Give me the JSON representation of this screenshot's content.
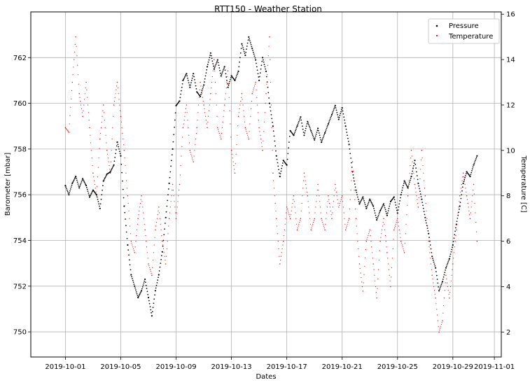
{
  "chart_data": {
    "type": "scatter",
    "title": "RTT150 - Weather Station",
    "xlabel": "Dates",
    "ylabel": "Barometer [mbar]",
    "y2label": "Temperature [C]",
    "xlim": [
      "2019-09-28T12:00",
      "2019-11-01T12:00"
    ],
    "ylim": [
      748.9,
      764.0
    ],
    "y2lim": [
      0.9,
      16.1
    ],
    "x_ticks": [
      "2019-10-01",
      "2019-10-05",
      "2019-10-09",
      "2019-10-13",
      "2019-10-17",
      "2019-10-21",
      "2019-10-25",
      "2019-10-29",
      "2019-11-01"
    ],
    "y_ticks": [
      750,
      752,
      754,
      756,
      758,
      760,
      762
    ],
    "y2_ticks": [
      2,
      4,
      6,
      8,
      10,
      12,
      14,
      16
    ],
    "grid": true,
    "legend": "top-right",
    "series": [
      {
        "name": "Pressure",
        "axis": "left",
        "color": "#000000",
        "marker": "dot",
        "points": [
          [
            "2019-10-01T00:00",
            756.4
          ],
          [
            "2019-10-01T06:00",
            756.0
          ],
          [
            "2019-10-01T12:00",
            756.5
          ],
          [
            "2019-10-01T18:00",
            756.8
          ],
          [
            "2019-10-02T00:00",
            756.3
          ],
          [
            "2019-10-02T06:00",
            756.7
          ],
          [
            "2019-10-02T12:00",
            756.4
          ],
          [
            "2019-10-02T18:00",
            755.9
          ],
          [
            "2019-10-03T00:00",
            756.2
          ],
          [
            "2019-10-03T06:00",
            756.0
          ],
          [
            "2019-10-03T12:00",
            755.4
          ],
          [
            "2019-10-03T18:00",
            756.6
          ],
          [
            "2019-10-04T00:00",
            756.9
          ],
          [
            "2019-10-04T06:00",
            757.0
          ],
          [
            "2019-10-04T12:00",
            757.3
          ],
          [
            "2019-10-04T18:00",
            758.3
          ],
          [
            "2019-10-05T00:00",
            757.7
          ],
          [
            "2019-10-05T06:00",
            755.5
          ],
          [
            "2019-10-05T12:00",
            753.8
          ],
          [
            "2019-10-05T18:00",
            752.5
          ],
          [
            "2019-10-06T00:00",
            752.0
          ],
          [
            "2019-10-06T06:00",
            751.5
          ],
          [
            "2019-10-06T12:00",
            751.8
          ],
          [
            "2019-10-06T18:00",
            752.3
          ],
          [
            "2019-10-07T00:00",
            751.5
          ],
          [
            "2019-10-07T06:00",
            750.7
          ],
          [
            "2019-10-07T12:00",
            751.8
          ],
          [
            "2019-10-07T18:00",
            752.5
          ],
          [
            "2019-10-08T00:00",
            753.5
          ],
          [
            "2019-10-08T06:00",
            755.0
          ],
          [
            "2019-10-08T12:00",
            756.5
          ],
          [
            "2019-10-08T18:00",
            758.0
          ],
          [
            "2019-10-09T00:00",
            759.9
          ],
          [
            "2019-10-09T06:00",
            760.1
          ],
          [
            "2019-10-09T12:00",
            761.0
          ],
          [
            "2019-10-09T18:00",
            761.3
          ],
          [
            "2019-10-10T00:00",
            760.7
          ],
          [
            "2019-10-10T06:00",
            761.3
          ],
          [
            "2019-10-10T12:00",
            760.5
          ],
          [
            "2019-10-10T18:00",
            760.3
          ],
          [
            "2019-10-11T00:00",
            760.8
          ],
          [
            "2019-10-11T06:00",
            761.6
          ],
          [
            "2019-10-11T12:00",
            762.2
          ],
          [
            "2019-10-11T18:00",
            761.5
          ],
          [
            "2019-10-12T00:00",
            761.9
          ],
          [
            "2019-10-12T06:00",
            761.2
          ],
          [
            "2019-10-12T12:00",
            761.6
          ],
          [
            "2019-10-12T18:00",
            760.7
          ],
          [
            "2019-10-13T00:00",
            761.2
          ],
          [
            "2019-10-13T06:00",
            761.0
          ],
          [
            "2019-10-13T12:00",
            761.4
          ],
          [
            "2019-10-13T18:00",
            762.6
          ],
          [
            "2019-10-14T00:00",
            762.1
          ],
          [
            "2019-10-14T06:00",
            762.9
          ],
          [
            "2019-10-14T12:00",
            762.4
          ],
          [
            "2019-10-14T18:00",
            761.9
          ],
          [
            "2019-10-15T00:00",
            761.0
          ],
          [
            "2019-10-15T06:00",
            762.0
          ],
          [
            "2019-10-15T12:00",
            761.4
          ],
          [
            "2019-10-15T18:00",
            760.0
          ],
          [
            "2019-10-16T00:00",
            759.0
          ],
          [
            "2019-10-16T06:00",
            757.7
          ],
          [
            "2019-10-16T12:00",
            756.8
          ],
          [
            "2019-10-16T18:00",
            757.5
          ],
          [
            "2019-10-17T00:00",
            757.3
          ],
          [
            "2019-10-17T06:00",
            758.8
          ],
          [
            "2019-10-17T12:00",
            758.6
          ],
          [
            "2019-10-17T18:00",
            759.0
          ],
          [
            "2019-10-18T00:00",
            759.4
          ],
          [
            "2019-10-18T06:00",
            758.6
          ],
          [
            "2019-10-18T12:00",
            759.2
          ],
          [
            "2019-10-18T18:00",
            758.8
          ],
          [
            "2019-10-19T00:00",
            758.4
          ],
          [
            "2019-10-19T06:00",
            758.9
          ],
          [
            "2019-10-19T12:00",
            758.3
          ],
          [
            "2019-10-19T18:00",
            758.7
          ],
          [
            "2019-10-20T00:00",
            759.1
          ],
          [
            "2019-10-20T06:00",
            759.5
          ],
          [
            "2019-10-20T12:00",
            759.9
          ],
          [
            "2019-10-20T18:00",
            759.3
          ],
          [
            "2019-10-21T00:00",
            759.8
          ],
          [
            "2019-10-21T06:00",
            759.0
          ],
          [
            "2019-10-21T12:00",
            758.2
          ],
          [
            "2019-10-21T18:00",
            757.0
          ],
          [
            "2019-10-22T00:00",
            756.2
          ],
          [
            "2019-10-22T06:00",
            755.6
          ],
          [
            "2019-10-22T12:00",
            755.9
          ],
          [
            "2019-10-22T18:00",
            755.4
          ],
          [
            "2019-10-23T00:00",
            755.8
          ],
          [
            "2019-10-23T06:00",
            755.5
          ],
          [
            "2019-10-23T12:00",
            754.9
          ],
          [
            "2019-10-23T18:00",
            755.3
          ],
          [
            "2019-10-24T00:00",
            755.6
          ],
          [
            "2019-10-24T06:00",
            755.1
          ],
          [
            "2019-10-24T12:00",
            755.7
          ],
          [
            "2019-10-24T18:00",
            755.9
          ],
          [
            "2019-10-25T00:00",
            755.2
          ],
          [
            "2019-10-25T06:00",
            756.0
          ],
          [
            "2019-10-25T12:00",
            756.6
          ],
          [
            "2019-10-25T18:00",
            756.3
          ],
          [
            "2019-10-26T00:00",
            756.8
          ],
          [
            "2019-10-26T06:00",
            757.5
          ],
          [
            "2019-10-26T12:00",
            756.5
          ],
          [
            "2019-10-26T18:00",
            755.8
          ],
          [
            "2019-10-27T00:00",
            755.0
          ],
          [
            "2019-10-27T06:00",
            754.3
          ],
          [
            "2019-10-27T12:00",
            753.3
          ],
          [
            "2019-10-27T18:00",
            752.8
          ],
          [
            "2019-10-28T00:00",
            751.8
          ],
          [
            "2019-10-28T06:00",
            752.2
          ],
          [
            "2019-10-28T12:00",
            752.8
          ],
          [
            "2019-10-28T18:00",
            753.2
          ],
          [
            "2019-10-29T00:00",
            753.8
          ],
          [
            "2019-10-29T06:00",
            754.7
          ],
          [
            "2019-10-29T12:00",
            755.5
          ],
          [
            "2019-10-29T18:00",
            756.5
          ],
          [
            "2019-10-30T00:00",
            757.0
          ],
          [
            "2019-10-30T06:00",
            756.8
          ],
          [
            "2019-10-30T12:00",
            757.3
          ],
          [
            "2019-10-30T18:00",
            757.7
          ]
        ]
      },
      {
        "name": "Temperature",
        "axis": "right",
        "color": "#ff0000",
        "marker": "dot",
        "points": [
          [
            "2019-10-01T00:00",
            11.0
          ],
          [
            "2019-10-01T06:00",
            10.8
          ],
          [
            "2019-10-01T12:00",
            13.0
          ],
          [
            "2019-10-01T18:00",
            15.0
          ],
          [
            "2019-10-02T00:00",
            12.5
          ],
          [
            "2019-10-02T06:00",
            11.5
          ],
          [
            "2019-10-02T12:00",
            13.0
          ],
          [
            "2019-10-02T18:00",
            11.0
          ],
          [
            "2019-10-03T00:00",
            9.0
          ],
          [
            "2019-10-03T06:00",
            8.0
          ],
          [
            "2019-10-03T12:00",
            10.5
          ],
          [
            "2019-10-03T18:00",
            12.0
          ],
          [
            "2019-10-04T00:00",
            10.0
          ],
          [
            "2019-10-04T06:00",
            9.0
          ],
          [
            "2019-10-04T12:00",
            12.0
          ],
          [
            "2019-10-04T18:00",
            13.0
          ],
          [
            "2019-10-05T00:00",
            11.5
          ],
          [
            "2019-10-05T06:00",
            10.0
          ],
          [
            "2019-10-05T12:00",
            8.0
          ],
          [
            "2019-10-05T18:00",
            6.0
          ],
          [
            "2019-10-06T00:00",
            5.5
          ],
          [
            "2019-10-06T06:00",
            7.0
          ],
          [
            "2019-10-06T12:00",
            8.0
          ],
          [
            "2019-10-06T18:00",
            6.5
          ],
          [
            "2019-10-07T00:00",
            5.0
          ],
          [
            "2019-10-07T06:00",
            4.5
          ],
          [
            "2019-10-07T12:00",
            6.5
          ],
          [
            "2019-10-07T18:00",
            7.5
          ],
          [
            "2019-10-08T00:00",
            6.0
          ],
          [
            "2019-10-08T06:00",
            5.0
          ],
          [
            "2019-10-08T12:00",
            7.0
          ],
          [
            "2019-10-08T18:00",
            8.5
          ],
          [
            "2019-10-09T00:00",
            7.0
          ],
          [
            "2019-10-09T06:00",
            8.5
          ],
          [
            "2019-10-09T12:00",
            11.0
          ],
          [
            "2019-10-09T18:00",
            12.0
          ],
          [
            "2019-10-10T00:00",
            10.0
          ],
          [
            "2019-10-10T06:00",
            9.5
          ],
          [
            "2019-10-10T12:00",
            11.0
          ],
          [
            "2019-10-10T18:00",
            13.0
          ],
          [
            "2019-10-11T00:00",
            12.0
          ],
          [
            "2019-10-11T06:00",
            11.0
          ],
          [
            "2019-10-11T12:00",
            12.5
          ],
          [
            "2019-10-11T18:00",
            14.0
          ],
          [
            "2019-10-12T00:00",
            11.0
          ],
          [
            "2019-10-12T06:00",
            10.5
          ],
          [
            "2019-10-12T12:00",
            12.0
          ],
          [
            "2019-10-12T18:00",
            13.5
          ],
          [
            "2019-10-13T00:00",
            10.0
          ],
          [
            "2019-10-13T06:00",
            9.0
          ],
          [
            "2019-10-13T12:00",
            11.5
          ],
          [
            "2019-10-13T18:00",
            12.5
          ],
          [
            "2019-10-14T00:00",
            11.0
          ],
          [
            "2019-10-14T06:00",
            10.5
          ],
          [
            "2019-10-14T12:00",
            12.5
          ],
          [
            "2019-10-14T18:00",
            13.0
          ],
          [
            "2019-10-15T00:00",
            11.0
          ],
          [
            "2019-10-15T06:00",
            10.0
          ],
          [
            "2019-10-15T12:00",
            12.5
          ],
          [
            "2019-10-15T18:00",
            15.0
          ],
          [
            "2019-10-16T00:00",
            9.0
          ],
          [
            "2019-10-16T06:00",
            7.0
          ],
          [
            "2019-10-16T12:00",
            5.0
          ],
          [
            "2019-10-16T18:00",
            6.0
          ],
          [
            "2019-10-17T00:00",
            7.5
          ],
          [
            "2019-10-17T06:00",
            7.0
          ],
          [
            "2019-10-17T12:00",
            8.0
          ],
          [
            "2019-10-17T18:00",
            6.5
          ],
          [
            "2019-10-18T00:00",
            7.0
          ],
          [
            "2019-10-18T06:00",
            9.0
          ],
          [
            "2019-10-18T12:00",
            8.0
          ],
          [
            "2019-10-18T18:00",
            6.5
          ],
          [
            "2019-10-19T00:00",
            7.0
          ],
          [
            "2019-10-19T06:00",
            8.5
          ],
          [
            "2019-10-19T12:00",
            7.0
          ],
          [
            "2019-10-19T18:00",
            6.5
          ],
          [
            "2019-10-20T00:00",
            8.0
          ],
          [
            "2019-10-20T06:00",
            7.0
          ],
          [
            "2019-10-20T12:00",
            8.5
          ],
          [
            "2019-10-20T18:00",
            7.5
          ],
          [
            "2019-10-21T00:00",
            8.0
          ],
          [
            "2019-10-21T06:00",
            6.5
          ],
          [
            "2019-10-21T12:00",
            7.0
          ],
          [
            "2019-10-21T18:00",
            9.5
          ],
          [
            "2019-10-22T00:00",
            7.0
          ],
          [
            "2019-10-22T06:00",
            5.0
          ],
          [
            "2019-10-22T12:00",
            3.8
          ],
          [
            "2019-10-22T18:00",
            6.0
          ],
          [
            "2019-10-23T00:00",
            6.5
          ],
          [
            "2019-10-23T06:00",
            5.0
          ],
          [
            "2019-10-23T12:00",
            3.5
          ],
          [
            "2019-10-23T18:00",
            6.0
          ],
          [
            "2019-10-24T00:00",
            7.0
          ],
          [
            "2019-10-24T06:00",
            5.5
          ],
          [
            "2019-10-24T12:00",
            4.0
          ],
          [
            "2019-10-24T18:00",
            6.5
          ],
          [
            "2019-10-25T00:00",
            7.0
          ],
          [
            "2019-10-25T06:00",
            6.0
          ],
          [
            "2019-10-25T12:00",
            5.5
          ],
          [
            "2019-10-25T18:00",
            8.0
          ],
          [
            "2019-10-26T00:00",
            10.0
          ],
          [
            "2019-10-26T06:00",
            8.5
          ],
          [
            "2019-10-26T12:00",
            7.5
          ],
          [
            "2019-10-26T18:00",
            10.0
          ],
          [
            "2019-10-27T00:00",
            8.0
          ],
          [
            "2019-10-27T06:00",
            6.0
          ],
          [
            "2019-10-27T12:00",
            4.5
          ],
          [
            "2019-10-27T18:00",
            3.5
          ],
          [
            "2019-10-28T00:00",
            2.0
          ],
          [
            "2019-10-28T06:00",
            2.5
          ],
          [
            "2019-10-28T12:00",
            4.5
          ],
          [
            "2019-10-28T18:00",
            3.5
          ],
          [
            "2019-10-29T00:00",
            5.0
          ],
          [
            "2019-10-29T06:00",
            6.5
          ],
          [
            "2019-10-29T12:00",
            8.0
          ],
          [
            "2019-10-29T18:00",
            9.0
          ],
          [
            "2019-10-30T00:00",
            8.0
          ],
          [
            "2019-10-30T06:00",
            7.0
          ],
          [
            "2019-10-30T12:00",
            8.5
          ],
          [
            "2019-10-30T18:00",
            6.0
          ]
        ]
      }
    ]
  }
}
